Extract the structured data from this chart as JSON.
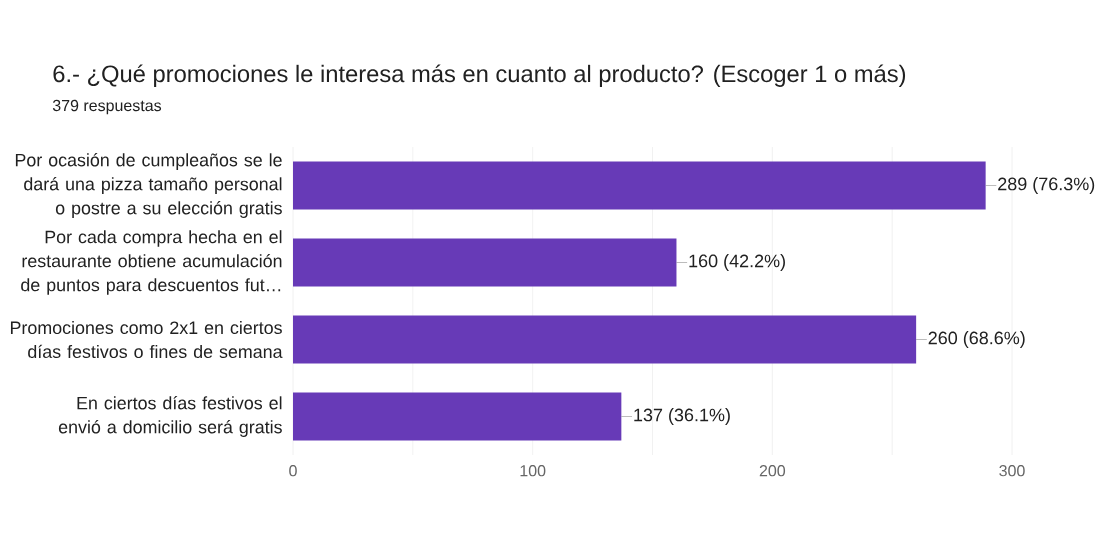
{
  "chart_data": {
    "type": "bar",
    "orientation": "horizontal",
    "title": "6.- ¿Qué promociones le interesa más en cuanto al producto? (Escoger 1 o más)",
    "subtitle": "379 respuestas",
    "categories": [
      "Por ocasión de cumpleaños se le dará una pizza tamaño personal o postre a su elección gratis",
      "Por cada compra hecha en el restaurante obtiene acumulación de puntos para descuentos fut…",
      "Promociones como 2x1 en ciertos días festivos o fines de semana",
      "En ciertos días festivos el envió a domicilio será gratis"
    ],
    "values": [
      289,
      160,
      260,
      137
    ],
    "value_labels": [
      "289 (76.3%)",
      "160 (42.2%)",
      "260 (68.6%)",
      "137 (36.1%)"
    ],
    "color": "#673ab7",
    "xlim": [
      0,
      300
    ],
    "xticks": [
      0,
      {
        "value": 50,
        "label": null
      },
      100,
      {
        "value": 150,
        "label": null
      },
      200,
      {
        "value": 250,
        "label": null
      },
      300
    ],
    "grid": "x"
  }
}
